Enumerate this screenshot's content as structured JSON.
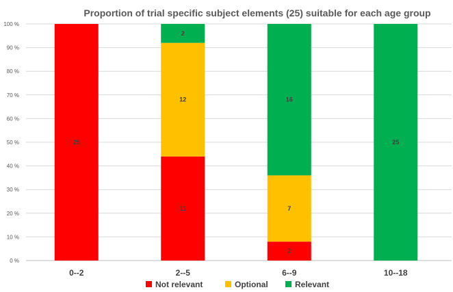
{
  "chart_data": {
    "type": "bar",
    "stacked": true,
    "percent_stacked": true,
    "title": "Proportion of trial specific subject elements (25) suitable for each age group",
    "categories": [
      "0--2",
      "2--5",
      "6--9",
      "10--18"
    ],
    "series": [
      {
        "name": "Not relevant",
        "color": "#ff0000",
        "values": [
          25,
          11,
          2,
          0
        ]
      },
      {
        "name": "Optional",
        "color": "#ffc000",
        "values": [
          0,
          12,
          7,
          0
        ]
      },
      {
        "name": "Relevant",
        "color": "#00b050",
        "values": [
          0,
          2,
          16,
          25
        ]
      }
    ],
    "data_labels": [
      [
        "25",
        "11",
        "2",
        ""
      ],
      [
        "",
        "12",
        "7",
        ""
      ],
      [
        "",
        "2",
        "16",
        "25"
      ]
    ],
    "y_ticks": [
      "0 %",
      "10 %",
      "20 %",
      "30 %",
      "40 %",
      "50 %",
      "60 %",
      "70 %",
      "80 %",
      "90 %",
      "100 %"
    ],
    "ylim": [
      0,
      100
    ],
    "grid": true,
    "legend_position": "bottom",
    "xlabel": "",
    "ylabel": ""
  }
}
